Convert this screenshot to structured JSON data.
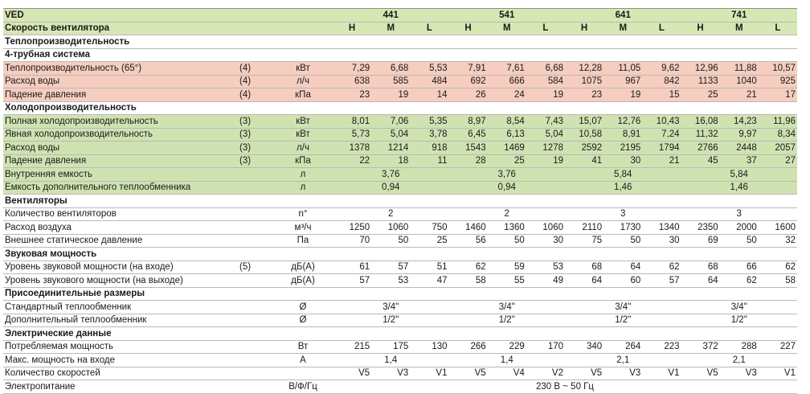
{
  "header": {
    "model_label": "VED",
    "speed_label": "Скорость вентилятора",
    "models": [
      "441",
      "541",
      "641",
      "741"
    ],
    "speeds": [
      "H",
      "M",
      "L"
    ]
  },
  "rows": [
    {
      "type": "section",
      "label": "Теплопроизводительность"
    },
    {
      "type": "section",
      "label": "4-трубная система"
    },
    {
      "type": "data",
      "style": "heat",
      "label": "Теплопроизводительность (65°)",
      "note": "(4)",
      "unit": "кВт",
      "values": [
        "7,29",
        "6,68",
        "5,53",
        "7,91",
        "7,61",
        "6,68",
        "12,28",
        "11,05",
        "9,62",
        "12,96",
        "11,88",
        "10,57"
      ]
    },
    {
      "type": "data",
      "style": "heat",
      "label": "Расход воды",
      "note": "(4)",
      "unit": "л/ч",
      "values": [
        "638",
        "585",
        "484",
        "692",
        "666",
        "584",
        "1075",
        "967",
        "842",
        "1133",
        "1040",
        "925"
      ]
    },
    {
      "type": "data",
      "style": "heat",
      "label": "Падение давления",
      "note": "(4)",
      "unit": "кПа",
      "values": [
        "23",
        "19",
        "14",
        "26",
        "24",
        "19",
        "23",
        "19",
        "15",
        "25",
        "21",
        "17"
      ]
    },
    {
      "type": "section",
      "label": "Холодопроизводительность"
    },
    {
      "type": "data",
      "style": "cool",
      "label": "Полная холодопроизводительность",
      "note": "(3)",
      "unit": "кВт",
      "values": [
        "8,01",
        "7,06",
        "5,35",
        "8,97",
        "8,54",
        "7,43",
        "15,07",
        "12,76",
        "10,43",
        "16,08",
        "14,23",
        "11,96"
      ]
    },
    {
      "type": "data",
      "style": "cool",
      "label": "Явная холодопроизводительность",
      "note": "(3)",
      "unit": "кВт",
      "values": [
        "5,73",
        "5,04",
        "3,78",
        "6,45",
        "6,13",
        "5,04",
        "10,58",
        "8,91",
        "7,24",
        "11,32",
        "9,97",
        "8,34"
      ]
    },
    {
      "type": "data",
      "style": "cool",
      "label": "Расход воды",
      "note": "(3)",
      "unit": "л/ч",
      "values": [
        "1378",
        "1214",
        "918",
        "1543",
        "1469",
        "1278",
        "2592",
        "2195",
        "1794",
        "2766",
        "2448",
        "2057"
      ]
    },
    {
      "type": "data",
      "style": "cool",
      "label": "Падение давления",
      "note": "(3)",
      "unit": "кПа",
      "values": [
        "22",
        "18",
        "11",
        "28",
        "25",
        "19",
        "41",
        "30",
        "21",
        "45",
        "37",
        "27"
      ]
    },
    {
      "type": "model",
      "style": "cool",
      "label": "Внутренняя емкость",
      "note": "",
      "unit": "л",
      "values": [
        "3,76",
        "3,76",
        "5,84",
        "5,84"
      ]
    },
    {
      "type": "model",
      "style": "cool",
      "label": "Емкость дополнительного теплообменника",
      "note": "",
      "unit": "л",
      "values": [
        "0,94",
        "0,94",
        "1,46",
        "1,46"
      ]
    },
    {
      "type": "section",
      "label": "Вентиляторы"
    },
    {
      "type": "model",
      "style": "",
      "label": "Количество вентиляторов",
      "note": "",
      "unit": "n°",
      "values": [
        "2",
        "2",
        "3",
        "3"
      ]
    },
    {
      "type": "data",
      "style": "",
      "label": "Расход воздуха",
      "note": "",
      "unit": "м³/ч",
      "values": [
        "1250",
        "1060",
        "750",
        "1460",
        "1360",
        "1060",
        "2110",
        "1730",
        "1340",
        "2350",
        "2000",
        "1600"
      ]
    },
    {
      "type": "data",
      "style": "",
      "label": "Внешнее статическое давление",
      "note": "",
      "unit": "Па",
      "values": [
        "70",
        "50",
        "25",
        "56",
        "50",
        "30",
        "75",
        "50",
        "30",
        "69",
        "50",
        "32"
      ]
    },
    {
      "type": "section",
      "label": "Звуковая мощность"
    },
    {
      "type": "data",
      "style": "",
      "label": "Уровень звуковой мощности (на входе)",
      "note": "(5)",
      "unit": "дБ(A)",
      "values": [
        "61",
        "57",
        "51",
        "62",
        "59",
        "53",
        "68",
        "64",
        "62",
        "68",
        "66",
        "62"
      ]
    },
    {
      "type": "data",
      "style": "",
      "label": "Уровень звукового мощности (на выходе)",
      "note": "",
      "unit": "дБ(A)",
      "values": [
        "57",
        "53",
        "47",
        "58",
        "55",
        "49",
        "64",
        "60",
        "57",
        "64",
        "62",
        "58"
      ]
    },
    {
      "type": "section",
      "label": "Присоединительные размеры"
    },
    {
      "type": "model",
      "style": "",
      "label": "Стандартный теплообменник",
      "note": "",
      "unit": "Ø",
      "values": [
        "3/4\"",
        "3/4\"",
        "3/4\"",
        "3/4\""
      ]
    },
    {
      "type": "model",
      "style": "",
      "label": "Дополнительный теплообменник",
      "note": "",
      "unit": "Ø",
      "values": [
        "1/2\"",
        "1/2\"",
        "1/2\"",
        "1/2\""
      ]
    },
    {
      "type": "section",
      "label": "Электрические данные"
    },
    {
      "type": "data",
      "style": "",
      "label": "Потребляемая мощность",
      "note": "",
      "unit": "Вт",
      "values": [
        "215",
        "175",
        "130",
        "266",
        "229",
        "170",
        "340",
        "264",
        "223",
        "372",
        "288",
        "227"
      ]
    },
    {
      "type": "model",
      "style": "",
      "label": "Макс. мощность на входе",
      "note": "",
      "unit": "A",
      "values": [
        "1,4",
        "1,4",
        "2,1",
        "2,1"
      ]
    },
    {
      "type": "data",
      "style": "",
      "label": "Количество скоростей",
      "note": "",
      "unit": "",
      "values": [
        "V5",
        "V3",
        "V1",
        "V5",
        "V4",
        "V2",
        "V5",
        "V3",
        "V1",
        "V5",
        "V3",
        "V1"
      ]
    },
    {
      "type": "span",
      "style": "last",
      "label": "Электропитание",
      "note": "",
      "unit": "В/Ф/Гц",
      "value": "230 В ~ 50 Гц"
    }
  ]
}
